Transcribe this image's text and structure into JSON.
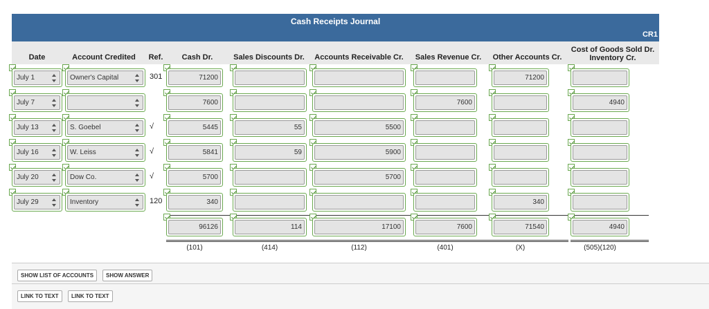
{
  "title": "Cash Receipts Journal",
  "journal_no": "CR1",
  "columns": [
    "Date",
    "Account Credited",
    "Ref.",
    "Cash Dr.",
    "Sales Discounts Dr.",
    "Accounts Receivable Cr.",
    "Sales Revenue Cr.",
    "Other Accounts Cr.",
    [
      "Cost of Goods Sold Dr.",
      "Inventory Cr."
    ]
  ],
  "rows": [
    {
      "date": "July 1",
      "account": "Owner's Capital",
      "ref": "301",
      "amounts": [
        71200,
        null,
        null,
        null,
        71200,
        null
      ]
    },
    {
      "date": "July 7",
      "account": null,
      "ref": null,
      "amounts": [
        7600,
        null,
        null,
        7600,
        null,
        4940
      ]
    },
    {
      "date": "July 13",
      "account": "S. Goebel",
      "ref": "√",
      "amounts": [
        5445,
        55,
        5500,
        null,
        null,
        null
      ]
    },
    {
      "date": "July 16",
      "account": "W. Leiss",
      "ref": "√",
      "amounts": [
        5841,
        59,
        5900,
        null,
        null,
        null
      ]
    },
    {
      "date": "July 20",
      "account": "Dow Co.",
      "ref": "√",
      "amounts": [
        5700,
        null,
        5700,
        null,
        null,
        null
      ]
    },
    {
      "date": "July 29",
      "account": "Inventory",
      "ref": "120",
      "amounts": [
        340,
        null,
        null,
        null,
        340,
        null
      ]
    }
  ],
  "totals": [
    96126,
    114,
    17100,
    7600,
    71540,
    4940
  ],
  "posting_refs": [
    "(101)",
    "(414)",
    "(112)",
    "(401)",
    "(X)",
    "(505)(120)"
  ],
  "buttons": [
    [
      "SHOW LIST OF ACCOUNTS",
      "SHOW ANSWER"
    ],
    [
      "LINK TO TEXT",
      "LINK TO TEXT"
    ]
  ]
}
